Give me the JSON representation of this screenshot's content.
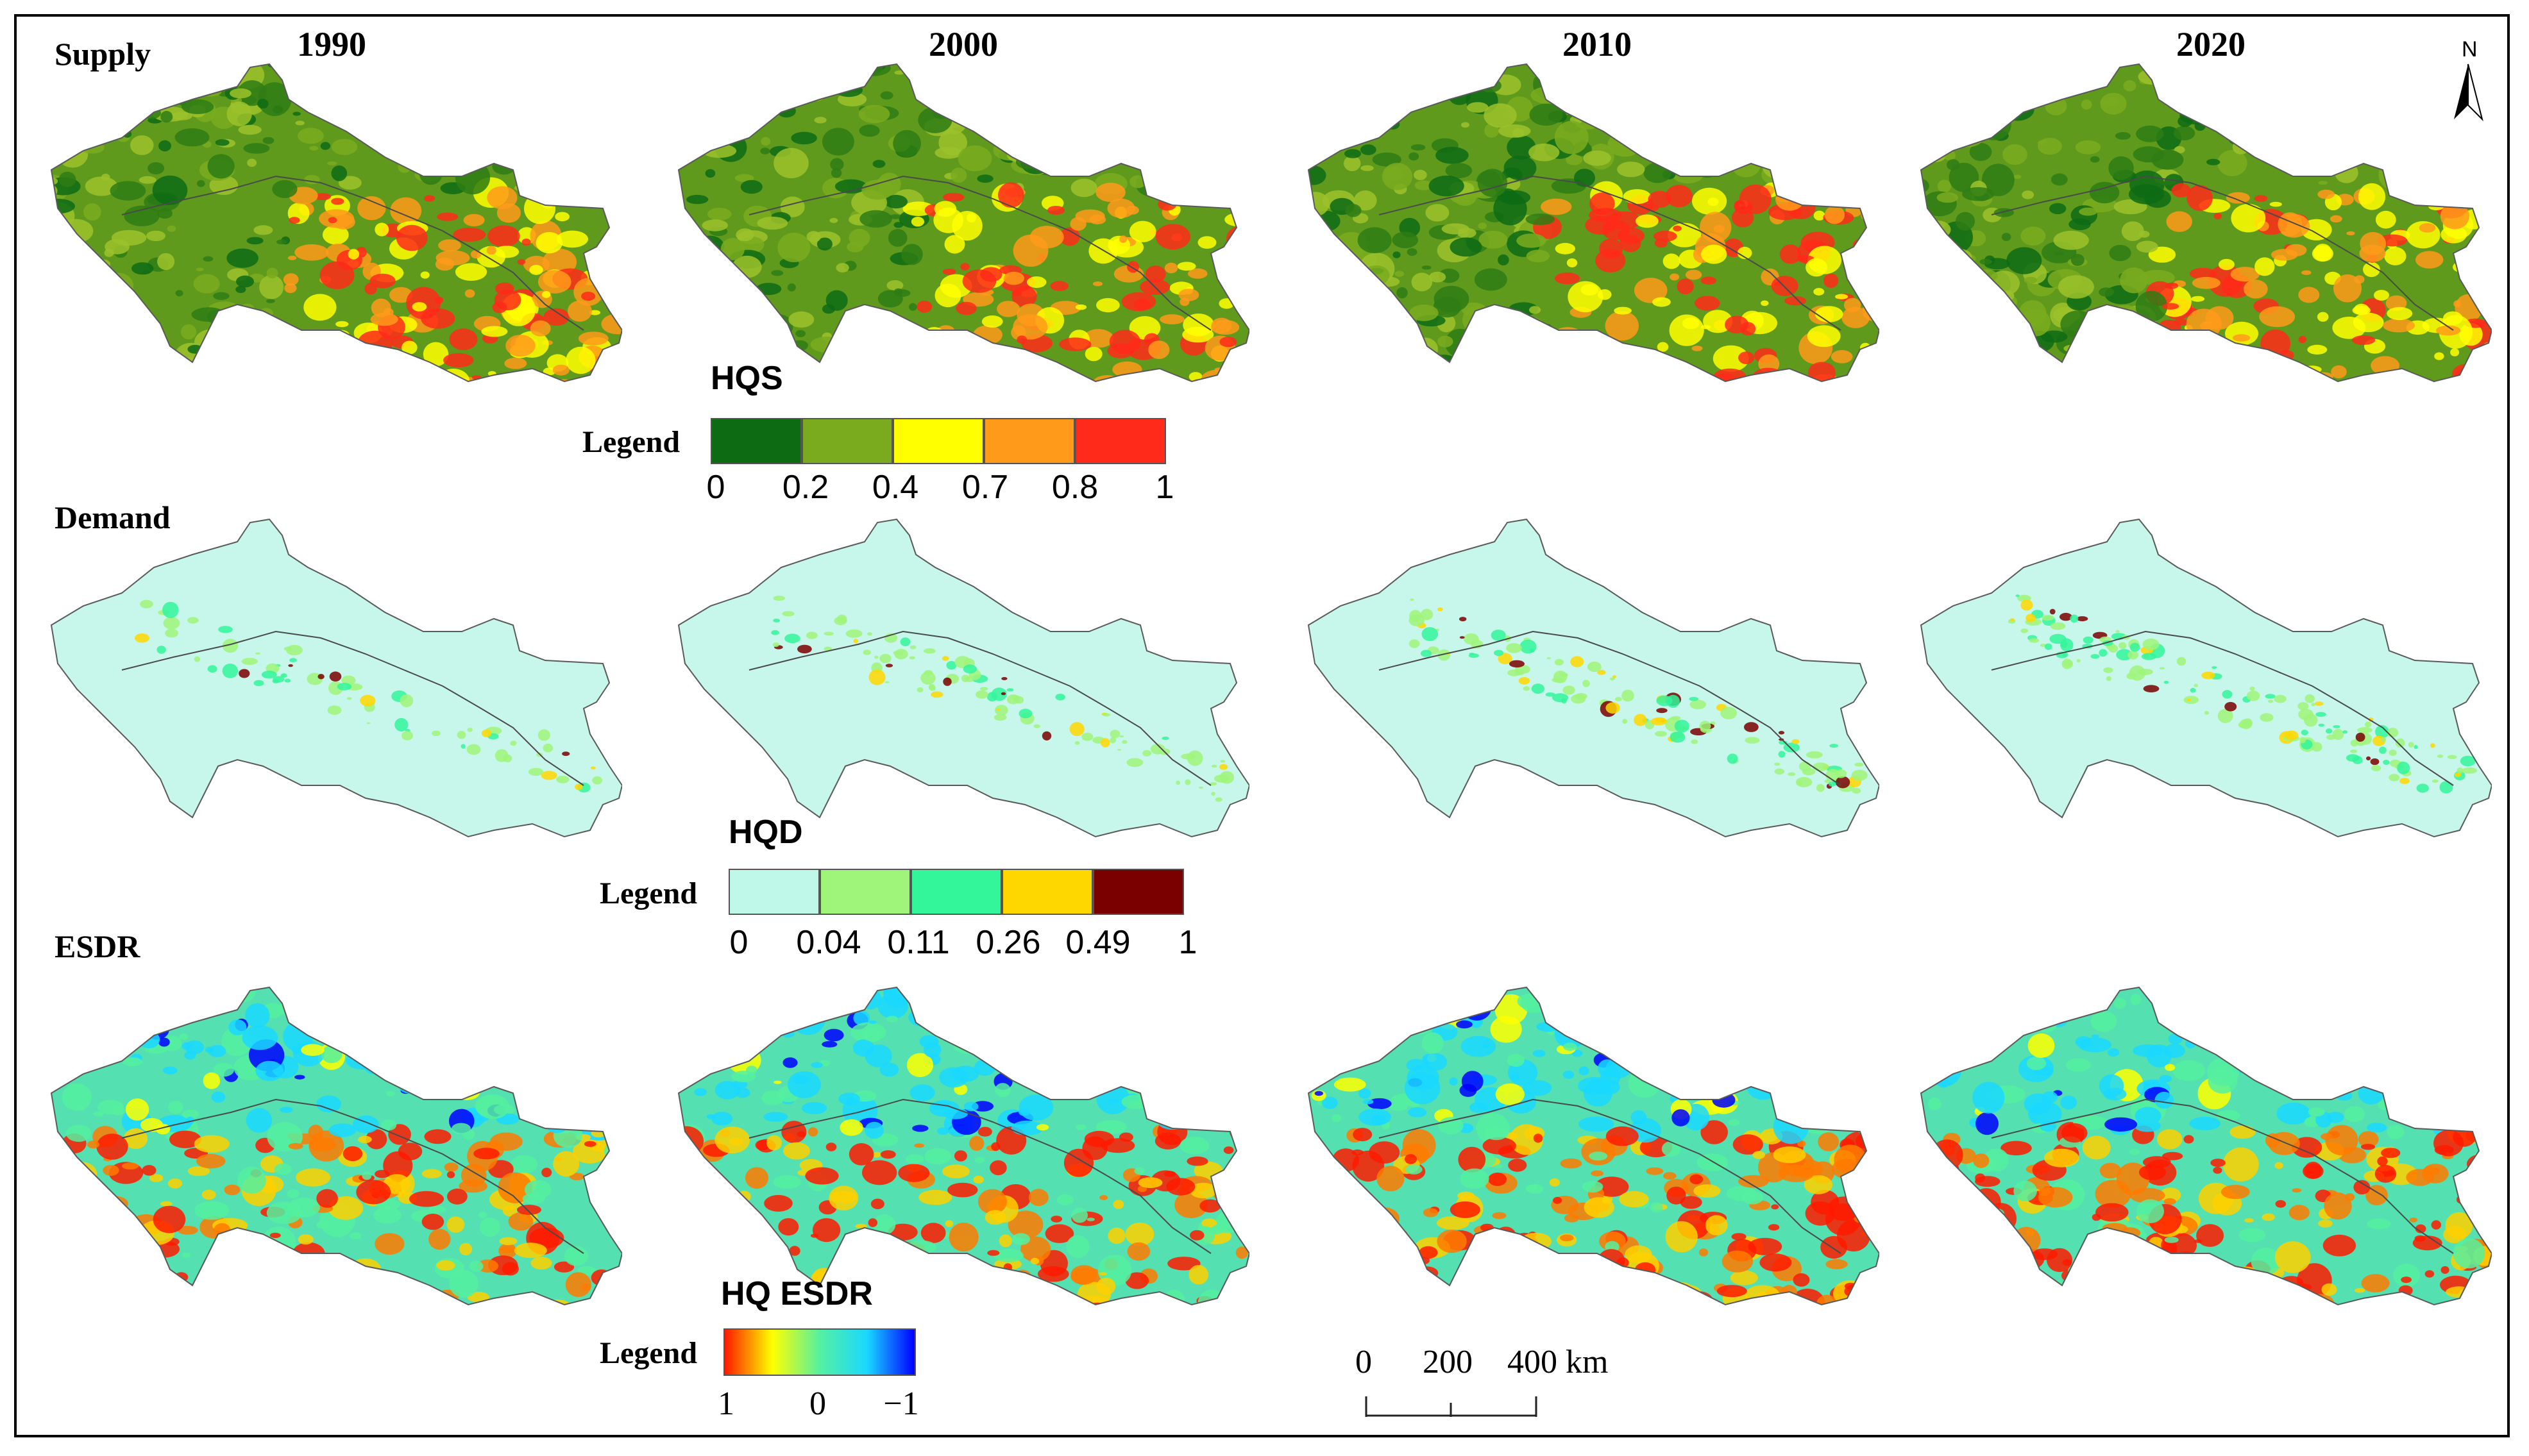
{
  "years": [
    "1990",
    "2000",
    "2010",
    "2020"
  ],
  "rows": {
    "supply": "Supply",
    "demand": "Demand",
    "esdr": "ESDR"
  },
  "legend_word": "Legend",
  "hqs_legend": {
    "title": "HQS",
    "ticks": [
      "0",
      "0.2",
      "0.4",
      "0.7",
      "0.8",
      "1"
    ],
    "colors": [
      "#0d6b14",
      "#7aab1e",
      "#ffff00",
      "#ff9a1a",
      "#ff2a1a"
    ]
  },
  "hqd_legend": {
    "title": "HQD",
    "ticks": [
      "0",
      "0.04",
      "0.11",
      "0.26",
      "0.49",
      "1"
    ],
    "colors": [
      "#bff7e8",
      "#9ff57a",
      "#33f59a",
      "#ffd700",
      "#7a0000"
    ]
  },
  "esdr_legend": {
    "title": "HQ ESDR",
    "ticks": [
      "1",
      "0",
      "−1"
    ],
    "colors": [
      "#ff1a00",
      "#ffff00",
      "#55f0a0",
      "#1ad8ff",
      "#0000ff"
    ]
  },
  "scale_bar": {
    "labels": [
      "0",
      "200",
      "400 km"
    ]
  },
  "north_arrow": {
    "label": "N",
    "icon": "north-arrow-icon"
  },
  "map_colors": {
    "outline": "#5a5a5a",
    "river": "#4a4a4a"
  }
}
